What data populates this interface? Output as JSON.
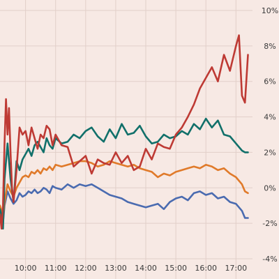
{
  "chart_data": {
    "type": "line",
    "title": "",
    "xlabel": "",
    "ylabel": "",
    "x_unit": "time of day (decimal hours)",
    "xlim": [
      9.15,
      17.55
    ],
    "ylim": [
      -4,
      10
    ],
    "x_ticks": [
      10,
      11,
      12,
      13,
      14,
      15,
      16,
      17
    ],
    "x_tick_labels": [
      "10:00",
      "11:00",
      "12:00",
      "13:00",
      "14:00",
      "15:00",
      "16:00",
      "17:00"
    ],
    "y_ticks": [
      -4,
      -2,
      0,
      2,
      4,
      6,
      8,
      10
    ],
    "y_tick_labels": [
      "-4%",
      "-2%",
      "0%",
      "2%",
      "4%",
      "6%",
      "8%",
      "10%"
    ],
    "y_axis_side": "right",
    "grid": true,
    "legend": "none",
    "series": [
      {
        "color": "#4a6bb0",
        "x": [
          9.15,
          9.2,
          9.25,
          9.3,
          9.4,
          9.5,
          9.6,
          9.7,
          9.8,
          9.9,
          10.0,
          10.1,
          10.2,
          10.3,
          10.4,
          10.5,
          10.6,
          10.7,
          10.8,
          10.9,
          11.0,
          11.2,
          11.4,
          11.6,
          11.8,
          12.0,
          12.2,
          12.4,
          12.6,
          12.8,
          13.0,
          13.2,
          13.4,
          13.6,
          13.8,
          14.0,
          14.2,
          14.4,
          14.6,
          14.8,
          15.0,
          15.2,
          15.4,
          15.6,
          15.8,
          16.0,
          16.2,
          16.4,
          16.6,
          16.8,
          17.0,
          17.2,
          17.3,
          17.4
        ],
        "values": [
          -1.4,
          -1.7,
          -2.0,
          -1.0,
          -0.2,
          -0.6,
          -0.9,
          -0.7,
          -0.3,
          -0.5,
          -0.4,
          -0.2,
          -0.3,
          -0.1,
          -0.3,
          -0.2,
          0.0,
          -0.1,
          -0.3,
          0.1,
          0.0,
          -0.1,
          0.2,
          0.0,
          0.2,
          0.1,
          0.2,
          0.0,
          -0.2,
          -0.4,
          -0.5,
          -0.6,
          -0.8,
          -0.9,
          -1.0,
          -1.1,
          -1.0,
          -0.9,
          -1.2,
          -0.8,
          -0.6,
          -0.5,
          -0.7,
          -0.3,
          -0.2,
          -0.4,
          -0.3,
          -0.6,
          -0.5,
          -0.8,
          -0.9,
          -1.3,
          -1.7,
          -1.7
        ]
      },
      {
        "color": "#e07a2a",
        "x": [
          9.15,
          9.2,
          9.25,
          9.3,
          9.4,
          9.5,
          9.6,
          9.7,
          9.8,
          9.9,
          10.0,
          10.1,
          10.2,
          10.3,
          10.4,
          10.5,
          10.6,
          10.7,
          10.8,
          10.9,
          11.0,
          11.2,
          11.4,
          11.6,
          11.8,
          12.0,
          12.2,
          12.4,
          12.6,
          12.8,
          13.0,
          13.2,
          13.4,
          13.6,
          13.8,
          14.0,
          14.2,
          14.4,
          14.6,
          14.8,
          15.0,
          15.2,
          15.4,
          15.6,
          15.8,
          16.0,
          16.2,
          16.4,
          16.6,
          16.8,
          17.0,
          17.2,
          17.3,
          17.4
        ],
        "values": [
          -1.0,
          -1.3,
          -1.8,
          -0.8,
          0.2,
          -0.2,
          -0.5,
          0.0,
          0.3,
          0.6,
          0.7,
          0.6,
          0.9,
          0.8,
          1.0,
          0.8,
          1.1,
          1.0,
          1.2,
          1.0,
          1.3,
          1.2,
          1.3,
          1.4,
          1.5,
          1.5,
          1.4,
          1.2,
          1.3,
          1.5,
          1.4,
          1.3,
          1.2,
          1.3,
          1.1,
          1.0,
          0.9,
          0.6,
          0.8,
          0.7,
          0.9,
          1.0,
          1.1,
          1.2,
          1.1,
          1.3,
          1.2,
          1.0,
          1.1,
          0.8,
          0.6,
          0.2,
          -0.2,
          -0.3
        ]
      },
      {
        "color": "#11706a",
        "x": [
          9.15,
          9.2,
          9.25,
          9.3,
          9.4,
          9.5,
          9.6,
          9.7,
          9.8,
          9.9,
          10.0,
          10.1,
          10.2,
          10.3,
          10.4,
          10.5,
          10.6,
          10.7,
          10.8,
          10.9,
          11.0,
          11.2,
          11.4,
          11.6,
          11.8,
          12.0,
          12.2,
          12.4,
          12.6,
          12.8,
          13.0,
          13.2,
          13.4,
          13.6,
          13.8,
          14.0,
          14.2,
          14.4,
          14.6,
          14.8,
          15.0,
          15.2,
          15.4,
          15.6,
          15.8,
          16.0,
          16.2,
          16.4,
          16.6,
          16.8,
          17.0,
          17.2,
          17.3,
          17.4
        ],
        "values": [
          -1.2,
          -1.6,
          -2.3,
          0.5,
          2.5,
          0.5,
          -0.8,
          1.5,
          1.0,
          1.6,
          1.9,
          2.2,
          1.8,
          2.4,
          2.6,
          2.3,
          2.0,
          2.8,
          2.4,
          2.2,
          2.8,
          2.5,
          2.6,
          3.0,
          2.8,
          3.2,
          3.4,
          2.9,
          2.6,
          3.3,
          2.8,
          3.6,
          3.0,
          3.1,
          3.5,
          2.9,
          2.5,
          2.6,
          3.0,
          2.8,
          2.9,
          3.2,
          3.0,
          3.6,
          3.3,
          3.9,
          3.4,
          3.8,
          3.0,
          2.9,
          2.5,
          2.1,
          2.0,
          2.0
        ]
      },
      {
        "color": "#be3a34",
        "x": [
          9.15,
          9.2,
          9.25,
          9.3,
          9.35,
          9.4,
          9.45,
          9.5,
          9.55,
          9.6,
          9.7,
          9.8,
          9.9,
          10.0,
          10.1,
          10.2,
          10.3,
          10.4,
          10.5,
          10.6,
          10.7,
          10.8,
          10.9,
          11.0,
          11.2,
          11.4,
          11.6,
          11.8,
          12.0,
          12.2,
          12.4,
          12.6,
          12.8,
          13.0,
          13.2,
          13.4,
          13.6,
          13.8,
          14.0,
          14.2,
          14.4,
          14.6,
          14.8,
          15.0,
          15.2,
          15.4,
          15.6,
          15.8,
          16.0,
          16.2,
          16.4,
          16.6,
          16.8,
          17.0,
          17.1,
          17.2,
          17.3,
          17.4
        ],
        "values": [
          -1.5,
          -2.3,
          -1.0,
          2.5,
          5.0,
          3.0,
          4.5,
          2.0,
          0.0,
          -0.8,
          1.0,
          3.4,
          3.0,
          3.2,
          2.4,
          3.4,
          2.8,
          2.2,
          3.0,
          2.8,
          3.5,
          3.3,
          2.4,
          3.0,
          2.4,
          2.3,
          1.2,
          1.5,
          1.8,
          0.8,
          1.6,
          1.4,
          1.3,
          2.0,
          1.4,
          1.8,
          1.0,
          1.2,
          2.2,
          1.6,
          2.5,
          2.3,
          2.2,
          3.0,
          3.4,
          4.0,
          4.7,
          5.6,
          6.2,
          6.8,
          6.0,
          7.5,
          6.6,
          8.0,
          8.6,
          5.2,
          4.8,
          7.5
        ]
      }
    ]
  }
}
